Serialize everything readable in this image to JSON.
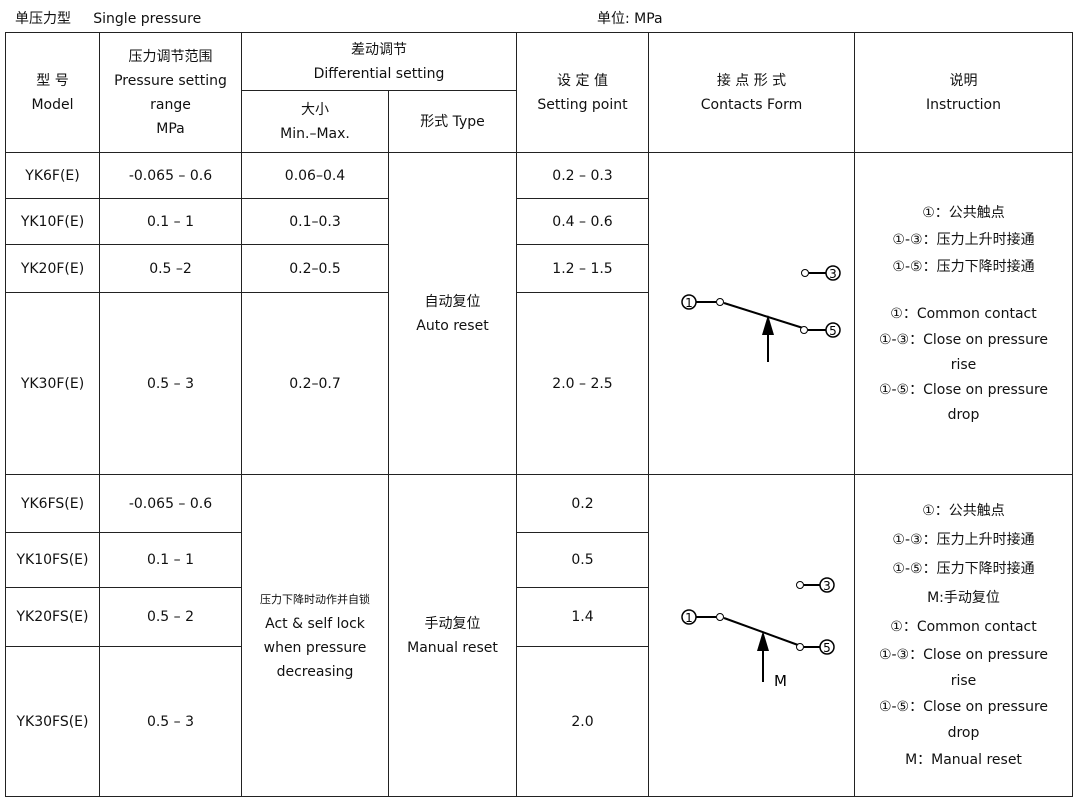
{
  "title_cn": "单压力型",
  "title_en": "Single pressure",
  "unit": "单位: MPa",
  "headers": {
    "model_cn": "型  号",
    "model_en": "Model",
    "range_cn": "压力调节范围",
    "range_en1": "Pressure setting",
    "range_en2": "range",
    "range_unit": "MPa",
    "diff_cn": "差动调节",
    "diff_en": "Differential setting",
    "size_cn": "大小",
    "size_en": "Min.–Max.",
    "type": "形式 Type",
    "set_cn": "设 定 值",
    "set_en": "Setting point",
    "contact_cn": "接 点 形 式",
    "contact_en": "Contacts Form",
    "instr_cn": "说明",
    "instr_en": "Instruction"
  },
  "group1": {
    "rows": [
      {
        "model": "YK6F(E)",
        "range": "-0.065 – 0.6",
        "diff": "0.06–0.4",
        "set": "0.2 – 0.3"
      },
      {
        "model": "YK10F(E)",
        "range": "0.1 – 1",
        "diff": "0.1–0.3",
        "set": "0.4 – 0.6"
      },
      {
        "model": "YK20F(E)",
        "range": "0.5 –2",
        "diff": "0.2–0.5",
        "set": "1.2 – 1.5"
      },
      {
        "model": "YK30F(E)",
        "range": "0.5 – 3",
        "diff": "0.2–0.7",
        "set": "2.0 – 2.5"
      }
    ],
    "type_cn": "自动复位",
    "type_en": "Auto reset",
    "instr": [
      "①：公共触点",
      "①-③：压力上升时接通",
      "①-⑤：压力下降时接通",
      "",
      "①：Common contact",
      "①-③：Close on pressure rise",
      "①-⑤：Close on pressure drop"
    ],
    "diagram": {
      "c1": "1",
      "c3": "3",
      "c5": "5"
    }
  },
  "group2": {
    "rows": [
      {
        "model": "YK6FS(E)",
        "range": "-0.065 – 0.6",
        "set": "0.2"
      },
      {
        "model": "YK10FS(E)",
        "range": "0.1 – 1",
        "set": "0.5"
      },
      {
        "model": "YK20FS(E)",
        "range": "0.5 – 2",
        "set": "1.4"
      },
      {
        "model": "YK30FS(E)",
        "range": "0.5 – 3",
        "set": "2.0"
      }
    ],
    "diff_cn": "压力下降时动作并自锁",
    "diff_en": "Act & self lock when pressure decreasing",
    "type_cn": "手动复位",
    "type_en": "Manual reset",
    "instr": [
      "①：公共触点",
      "①-③：压力上升时接通",
      "①-⑤：压力下降时接通",
      "M:手动复位",
      "①：Common contact",
      "①-③：Close on pressure rise",
      "①-⑤：Close on pressure drop",
      "M：Manual reset"
    ],
    "diagram": {
      "c1": "1",
      "c3": "3",
      "c5": "5",
      "m": "M"
    }
  }
}
